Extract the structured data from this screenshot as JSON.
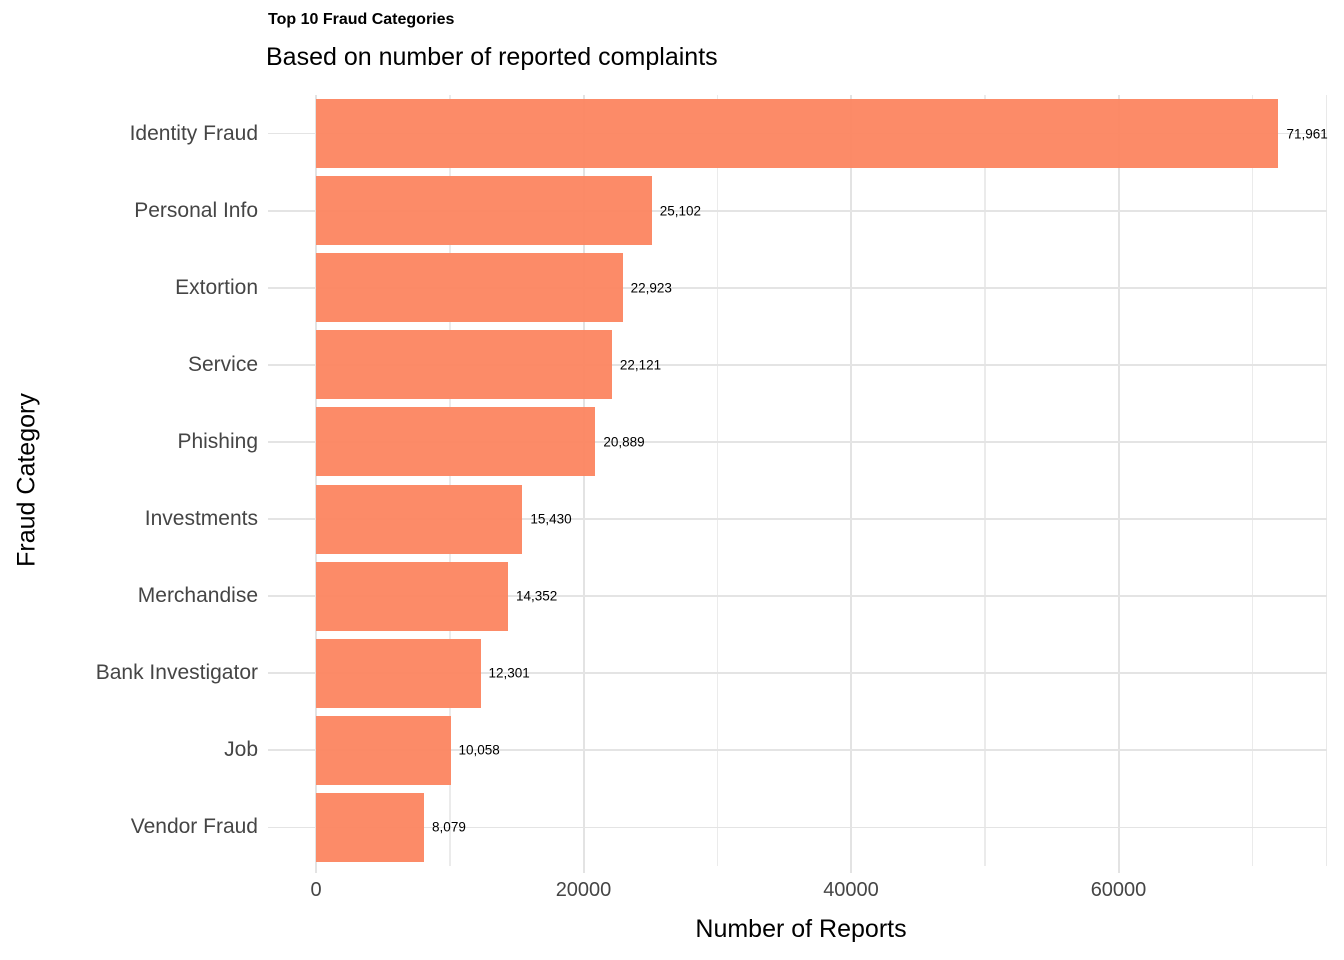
{
  "chart_data": {
    "type": "bar",
    "orientation": "horizontal",
    "title": "Top 10 Fraud Categories",
    "subtitle": "Based on number of reported complaints",
    "xlabel": "Number of Reports",
    "ylabel": "Fraud Category",
    "categories": [
      "Identity Fraud",
      "Personal Info",
      "Extortion",
      "Service",
      "Phishing",
      "Investments",
      "Merchandise",
      "Bank Investigator",
      "Job",
      "Vendor Fraud"
    ],
    "values": [
      71961,
      25102,
      22923,
      22121,
      20889,
      15430,
      14352,
      12301,
      10058,
      8079
    ],
    "value_labels": [
      "71,961",
      "25,102",
      "22,923",
      "22,121",
      "20,889",
      "15,430",
      "14,352",
      "12,301",
      "10,058",
      "8,079"
    ],
    "x_axis": {
      "tick_values": [
        0,
        20000,
        40000,
        60000
      ],
      "tick_labels": [
        "0",
        "20000",
        "40000",
        "60000"
      ],
      "minor_tick_values": [
        10000,
        30000,
        50000,
        70000
      ],
      "range_shown": [
        0,
        75600
      ]
    },
    "legend": "none",
    "grid": "on",
    "colors": {
      "bar_fill": "#FC8662",
      "grid_major": "#E3E3E3",
      "grid_minor": "#EBEBEB",
      "axis_text": "#454545",
      "title_text": "#000000",
      "value_label_text": "#000000"
    }
  }
}
